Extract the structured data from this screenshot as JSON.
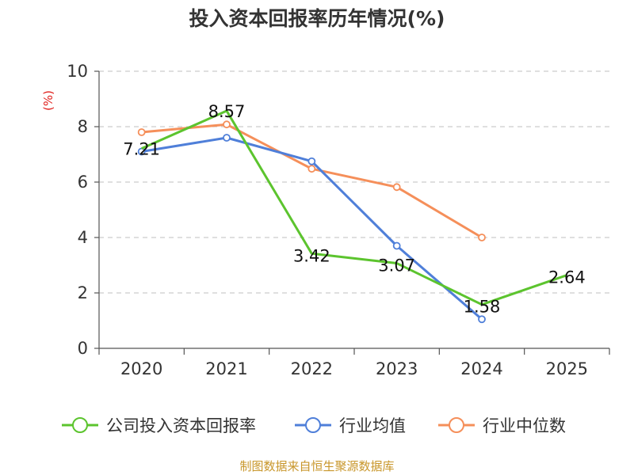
{
  "title": "投入资本回报率历年情况(%)",
  "unit": "(%)",
  "source": "制图数据来自恒生聚源数据库",
  "chart_data": {
    "type": "line",
    "title": "投入资本回报率历年情况(%)",
    "ylabel": "(%)",
    "xlabel": "",
    "categories": [
      "2020",
      "2021",
      "2022",
      "2023",
      "2024",
      "2025"
    ],
    "ylim": [
      0,
      10
    ],
    "yticks": [
      0,
      2,
      4,
      6,
      8,
      10
    ],
    "grid": true,
    "legend_position": "bottom",
    "series": [
      {
        "name": "公司投入资本回报率",
        "color": "#5cc42e",
        "values": [
          7.21,
          8.57,
          3.42,
          3.07,
          1.58,
          2.64
        ],
        "labels": [
          "7.21",
          "8.57",
          "3.42",
          "3.07",
          "1.58",
          "2.64"
        ]
      },
      {
        "name": "行业均值",
        "color": "#4f7fd9",
        "values": [
          7.1,
          7.6,
          6.75,
          3.7,
          1.05,
          null
        ]
      },
      {
        "name": "行业中位数",
        "color": "#f58f5a",
        "values": [
          7.8,
          8.08,
          6.48,
          5.82,
          4.0,
          null
        ]
      }
    ]
  }
}
